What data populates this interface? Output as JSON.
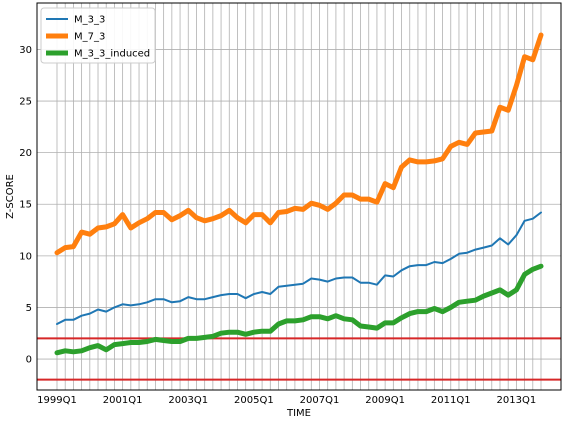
{
  "chart_data": {
    "type": "line",
    "title": "",
    "xlabel": "TIME",
    "ylabel": "Z-SCORE",
    "x": [
      "1999Q1",
      "1999Q2",
      "1999Q3",
      "1999Q4",
      "2000Q1",
      "2000Q2",
      "2000Q3",
      "2000Q4",
      "2001Q1",
      "2001Q2",
      "2001Q3",
      "2001Q4",
      "2002Q1",
      "2002Q2",
      "2002Q3",
      "2002Q4",
      "2003Q1",
      "2003Q2",
      "2003Q3",
      "2003Q4",
      "2004Q1",
      "2004Q2",
      "2004Q3",
      "2004Q4",
      "2005Q1",
      "2005Q2",
      "2005Q3",
      "2005Q4",
      "2006Q1",
      "2006Q2",
      "2006Q3",
      "2006Q4",
      "2007Q1",
      "2007Q2",
      "2007Q3",
      "2007Q4",
      "2008Q1",
      "2008Q2",
      "2008Q3",
      "2008Q4",
      "2009Q1",
      "2009Q2",
      "2009Q3",
      "2009Q4",
      "2010Q1",
      "2010Q2",
      "2010Q3",
      "2010Q4",
      "2011Q1",
      "2011Q2",
      "2011Q3",
      "2011Q4",
      "2012Q1",
      "2012Q2",
      "2012Q3",
      "2012Q4",
      "2013Q1",
      "2013Q2",
      "2013Q3",
      "2013Q4"
    ],
    "xticks": [
      "1999Q1",
      "2001Q1",
      "2003Q1",
      "2005Q1",
      "2007Q1",
      "2009Q1",
      "2011Q1",
      "2013Q1"
    ],
    "yticks": [
      0,
      5,
      10,
      15,
      20,
      25,
      30
    ],
    "ylim": [
      -3,
      34.5
    ],
    "grid": true,
    "legend_position": "top-left",
    "hlines": [
      {
        "y": 2,
        "color": "#d62728"
      },
      {
        "y": -2,
        "color": "#d62728"
      }
    ],
    "series": [
      {
        "name": "M_3_3",
        "color": "#1f77b4",
        "linewidth": 2,
        "values": [
          3.4,
          3.8,
          3.8,
          4.2,
          4.4,
          4.8,
          4.6,
          5.0,
          5.3,
          5.2,
          5.3,
          5.5,
          5.8,
          5.8,
          5.5,
          5.6,
          6.0,
          5.8,
          5.8,
          6.0,
          6.2,
          6.3,
          6.3,
          5.9,
          6.3,
          6.5,
          6.3,
          7.0,
          7.1,
          7.2,
          7.3,
          7.8,
          7.7,
          7.5,
          7.8,
          7.9,
          7.9,
          7.4,
          7.4,
          7.2,
          8.1,
          8.0,
          8.6,
          9.0,
          9.1,
          9.1,
          9.4,
          9.3,
          9.7,
          10.2,
          10.3,
          10.6,
          10.8,
          11.0,
          11.7,
          11.1,
          12.0,
          13.4,
          13.6,
          14.2
        ]
      },
      {
        "name": "M_7_3",
        "color": "#ff7f0e",
        "linewidth": 5,
        "values": [
          10.3,
          10.8,
          10.9,
          12.3,
          12.1,
          12.7,
          12.8,
          13.1,
          14.0,
          12.7,
          13.2,
          13.6,
          14.2,
          14.2,
          13.5,
          13.9,
          14.4,
          13.7,
          13.4,
          13.6,
          13.9,
          14.4,
          13.7,
          13.2,
          14.0,
          14.0,
          13.2,
          14.2,
          14.3,
          14.6,
          14.5,
          15.1,
          14.9,
          14.5,
          15.1,
          15.9,
          15.9,
          15.5,
          15.5,
          15.2,
          17.0,
          16.6,
          18.6,
          19.3,
          19.1,
          19.1,
          19.2,
          19.4,
          20.6,
          21.0,
          20.8,
          21.9,
          22.0,
          22.1,
          24.4,
          24.1,
          26.5,
          29.3,
          29.0,
          31.4
        ]
      },
      {
        "name": "M_3_3_induced",
        "color": "#2ca02c",
        "linewidth": 5,
        "values": [
          0.6,
          0.8,
          0.7,
          0.8,
          1.1,
          1.3,
          0.9,
          1.4,
          1.5,
          1.6,
          1.6,
          1.7,
          1.9,
          1.8,
          1.7,
          1.7,
          2.0,
          2.0,
          2.1,
          2.2,
          2.5,
          2.6,
          2.6,
          2.4,
          2.6,
          2.7,
          2.7,
          3.4,
          3.7,
          3.7,
          3.8,
          4.1,
          4.1,
          3.9,
          4.2,
          3.9,
          3.8,
          3.2,
          3.1,
          3.0,
          3.5,
          3.5,
          4.0,
          4.4,
          4.6,
          4.6,
          4.9,
          4.6,
          5.0,
          5.5,
          5.6,
          5.7,
          6.1,
          6.4,
          6.7,
          6.2,
          6.7,
          8.2,
          8.7,
          9.0
        ]
      }
    ]
  }
}
